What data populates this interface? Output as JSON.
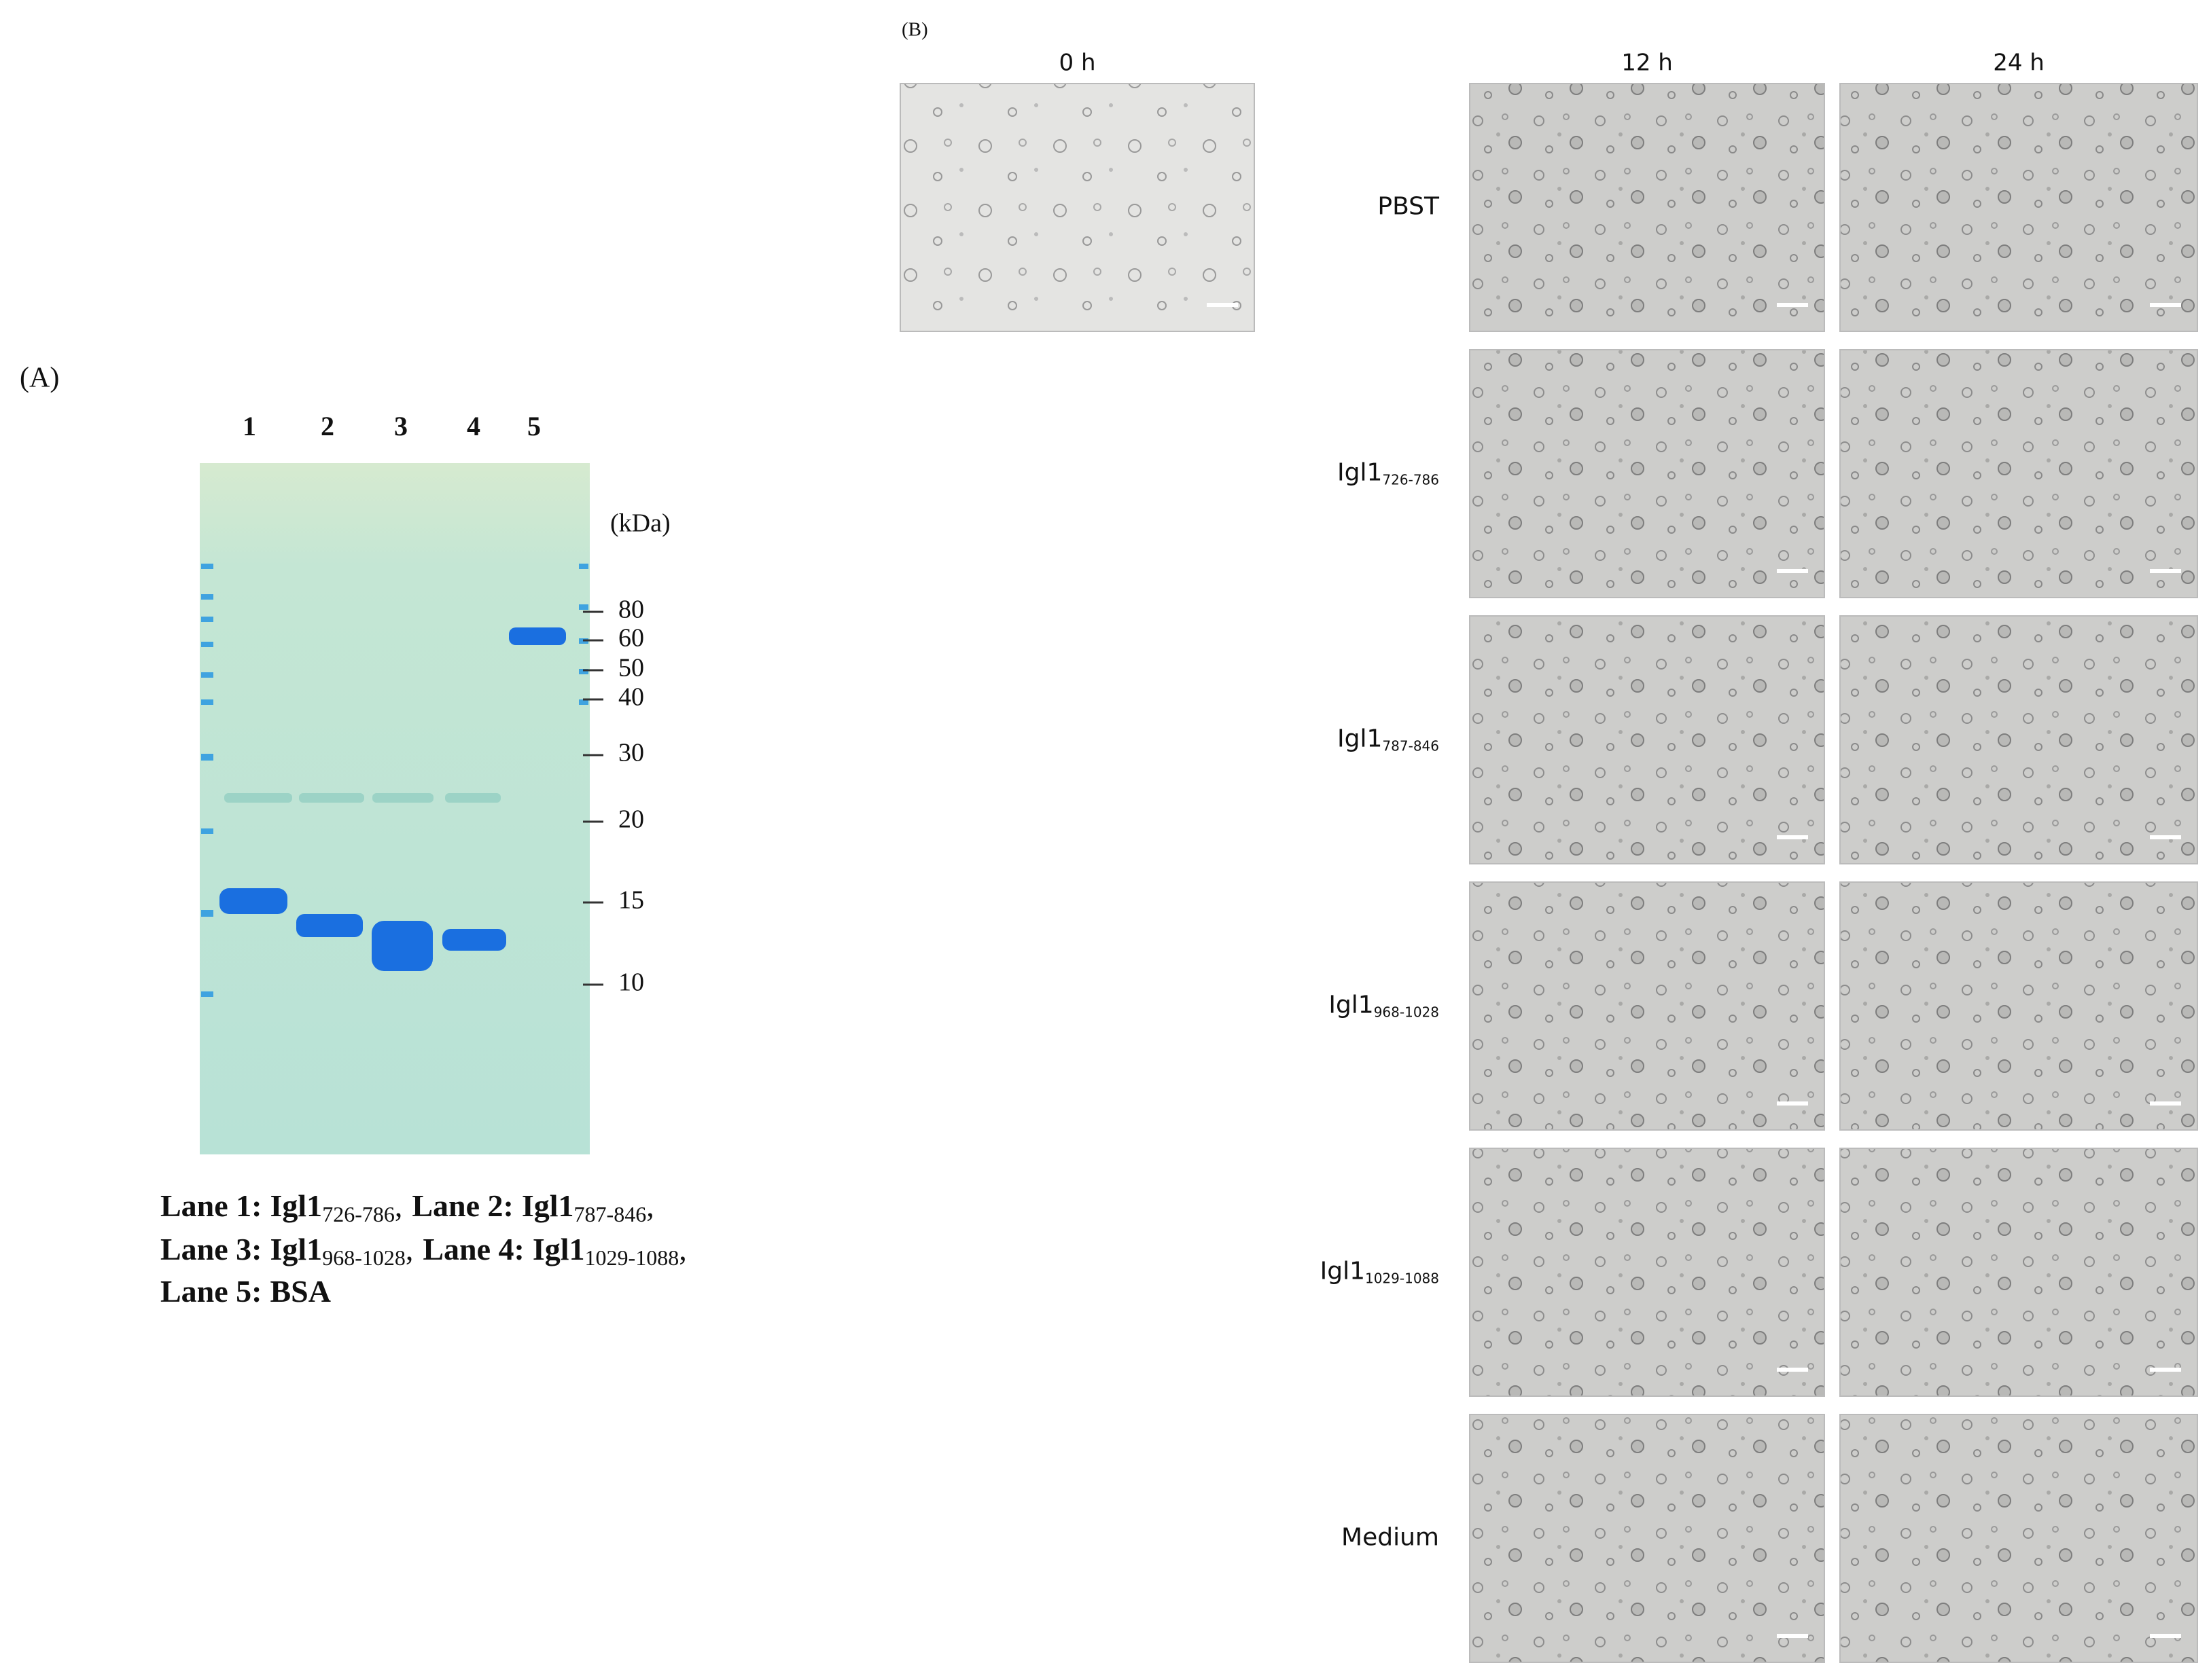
{
  "panel_a": {
    "label": "(A)",
    "lanes": [
      "1",
      "2",
      "3",
      "4",
      "5"
    ],
    "unit": "(kDa)",
    "markers": [
      "80",
      "60",
      "50",
      "40",
      "30",
      "20",
      "15",
      "10"
    ],
    "caption": [
      {
        "lane": "Lane 1:",
        "name": "Igl1",
        "sub": "726-786",
        "sep": ","
      },
      {
        "lane": "Lane 2:",
        "name": "Igl1",
        "sub": "787-846",
        "sep": ","
      },
      {
        "lane": "Lane 3:",
        "name": "Igl1",
        "sub": "968-1028",
        "sep": ","
      },
      {
        "lane": "Lane 4:",
        "name": "Igl1",
        "sub": "1029-1088",
        "sep": ","
      },
      {
        "lane": "Lane 5:",
        "name": "BSA"
      }
    ]
  },
  "panel_b": {
    "label": "(B)",
    "columns": [
      "0 h",
      "12 h",
      "24 h"
    ],
    "rows": [
      {
        "name": "PBST"
      },
      {
        "name": "Igl1",
        "sub": "726-786"
      },
      {
        "name": "Igl1",
        "sub": "787-846"
      },
      {
        "name": "Igl1",
        "sub": "968-1028"
      },
      {
        "name": "Igl1",
        "sub": "1029-1088"
      },
      {
        "name": "Medium"
      }
    ]
  }
}
